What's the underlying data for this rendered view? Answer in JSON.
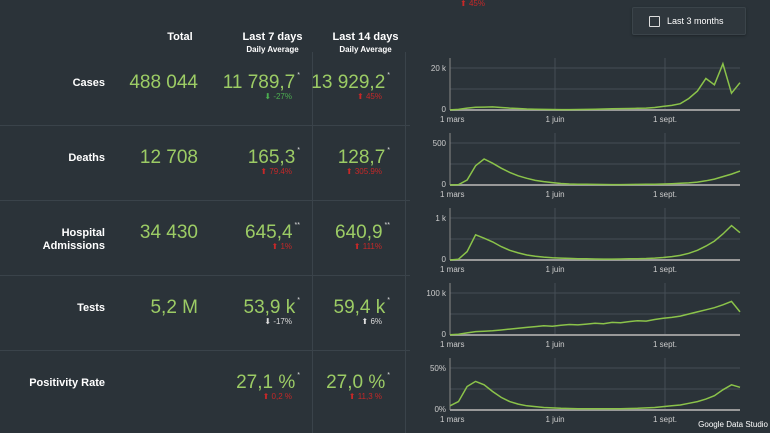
{
  "top_overflow_change": {
    "arrow": "up",
    "text": "45%",
    "color": "#c62828"
  },
  "toggle": {
    "label": "Last 3 months",
    "checked": false
  },
  "headers": {
    "total": "Total",
    "last7": "Last 7 days",
    "last7_sub": "Daily Average",
    "last14": "Last 14 days",
    "last14_sub": "Daily Average"
  },
  "colors": {
    "value": "#9ccc65",
    "line": "#8bc34a",
    "up_bad": "#c62828",
    "down_good": "#4caf50",
    "neutral": "#dddddd"
  },
  "rows": [
    {
      "label": "Cases",
      "total": "488 044",
      "last7": "11 789,7",
      "last7_mark": "*",
      "last7_change": "-27%",
      "last7_dir": "down",
      "last7_color": "#4caf50",
      "last14": "13 929,2",
      "last14_mark": "*",
      "last14_change": "45%",
      "last14_dir": "up",
      "last14_color": "#c62828"
    },
    {
      "label": "Deaths",
      "total": "12 708",
      "last7": "165,3",
      "last7_mark": "*",
      "last7_change": "79.4%",
      "last7_dir": "up",
      "last7_color": "#c62828",
      "last14": "128,7",
      "last14_mark": "*",
      "last14_change": "305.9%",
      "last14_dir": "up",
      "last14_color": "#c62828"
    },
    {
      "label": "Hospital Admissions",
      "total": "34 430",
      "last7": "645,4",
      "last7_mark": "**",
      "last7_change": "1%",
      "last7_dir": "up",
      "last7_color": "#c62828",
      "last14": "640,9",
      "last14_mark": "**",
      "last14_change": "111%",
      "last14_dir": "up",
      "last14_color": "#c62828"
    },
    {
      "label": "Tests",
      "total": "5,2 M",
      "last7": "53,9 k",
      "last7_mark": "*",
      "last7_change": "-17%",
      "last7_dir": "down",
      "last7_color": "#dddddd",
      "last14": "59,4 k",
      "last14_mark": "*",
      "last14_change": "6%",
      "last14_dir": "up",
      "last14_color": "#dddddd"
    },
    {
      "label": "Positivity Rate",
      "total": "",
      "last7": "27,1 %",
      "last7_mark": "*",
      "last7_change": "0,2 %",
      "last7_dir": "up",
      "last7_color": "#c62828",
      "last14": "27,0 %",
      "last14_mark": "*",
      "last14_change": "11,3 %",
      "last14_dir": "up",
      "last14_color": "#c62828"
    }
  ],
  "chart_data": [
    {
      "type": "line",
      "metric": "Cases",
      "x_ticks": [
        "1 mars",
        "1 juin",
        "1 sept."
      ],
      "y_ticks": [
        "0",
        "20 k"
      ],
      "ylim": [
        0,
        27000
      ],
      "grid": true,
      "values": [
        50,
        300,
        900,
        1300,
        1400,
        1500,
        1200,
        900,
        700,
        500,
        400,
        300,
        250,
        200,
        200,
        250,
        300,
        400,
        500,
        600,
        650,
        700,
        800,
        900,
        1200,
        1700,
        2200,
        3000,
        5500,
        9000,
        15000,
        12000,
        22000,
        8000,
        13000
      ]
    },
    {
      "type": "line",
      "metric": "Deaths",
      "x_ticks": [
        "1 mars",
        "1 juin",
        "1 sept."
      ],
      "y_ticks": [
        "0",
        "500"
      ],
      "ylim": [
        0,
        500
      ],
      "grid": true,
      "values": [
        0,
        5,
        60,
        230,
        310,
        260,
        200,
        150,
        110,
        80,
        55,
        40,
        28,
        18,
        12,
        10,
        8,
        7,
        6,
        5,
        5,
        6,
        7,
        8,
        10,
        12,
        15,
        20,
        25,
        35,
        50,
        70,
        100,
        130,
        165
      ]
    },
    {
      "type": "line",
      "metric": "Hospital Admissions",
      "x_ticks": [
        "1 mars",
        "1 juin",
        "1 sept."
      ],
      "y_ticks": [
        "0",
        "1 k"
      ],
      "ylim": [
        0,
        1000
      ],
      "grid": true,
      "values": [
        0,
        20,
        200,
        600,
        520,
        430,
        320,
        230,
        170,
        120,
        90,
        70,
        55,
        45,
        38,
        32,
        28,
        25,
        22,
        22,
        24,
        28,
        30,
        35,
        45,
        60,
        80,
        110,
        160,
        230,
        330,
        450,
        620,
        820,
        650
      ]
    },
    {
      "type": "line",
      "metric": "Tests",
      "x_ticks": [
        "1 mars",
        "1 juin",
        "1 sept."
      ],
      "y_ticks": [
        "0",
        "100 k"
      ],
      "ylim": [
        0,
        100000
      ],
      "grid": true,
      "values": [
        500,
        2000,
        5000,
        8000,
        9000,
        10000,
        12000,
        14000,
        16000,
        18000,
        20000,
        22000,
        21000,
        23000,
        25000,
        24000,
        26000,
        28000,
        27000,
        30000,
        29000,
        32000,
        34000,
        33000,
        37000,
        40000,
        42000,
        45000,
        50000,
        55000,
        60000,
        65000,
        72000,
        80000,
        55000
      ]
    },
    {
      "type": "line",
      "metric": "Positivity Rate",
      "x_ticks": [
        "1 mars",
        "1 juin",
        "1 sept."
      ],
      "y_ticks": [
        "0%",
        "50%"
      ],
      "ylim": [
        0,
        50
      ],
      "grid": true,
      "values": [
        5,
        10,
        28,
        34,
        30,
        22,
        15,
        10,
        7,
        5,
        4,
        3,
        2.5,
        2,
        1.8,
        1.5,
        1.5,
        1.5,
        1.5,
        1.5,
        1.5,
        1.8,
        2,
        2.5,
        3,
        4,
        5,
        6,
        8,
        10,
        13,
        17,
        24,
        30,
        27
      ]
    }
  ],
  "footer": "Google Data Studio"
}
